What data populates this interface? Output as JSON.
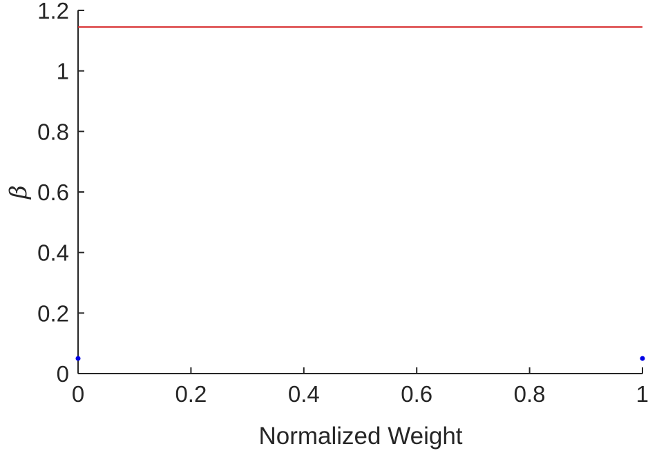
{
  "chart_data": {
    "type": "line",
    "title": "",
    "xlabel": "Normalized Weight",
    "ylabel": "β",
    "xlim": [
      0,
      1
    ],
    "ylim": [
      0,
      1.2
    ],
    "xticks": [
      0,
      0.2,
      0.4,
      0.6,
      0.8,
      1
    ],
    "xtick_labels": [
      "0",
      "0.2",
      "0.4",
      "0.6",
      "0.8",
      "1"
    ],
    "yticks": [
      0,
      0.2,
      0.4,
      0.6,
      0.8,
      1,
      1.2
    ],
    "ytick_labels": [
      "0",
      "0.2",
      "0.4",
      "0.6",
      "0.8",
      "1",
      "1.2"
    ],
    "grid": false,
    "box": false,
    "series": [
      {
        "kind": "line",
        "color": "#d62728",
        "x": [
          0,
          1
        ],
        "y": [
          1.145,
          1.145
        ]
      },
      {
        "kind": "scatter",
        "color": "#0000e6",
        "x": [
          0,
          1
        ],
        "y": [
          0.05,
          0.05
        ]
      }
    ]
  }
}
